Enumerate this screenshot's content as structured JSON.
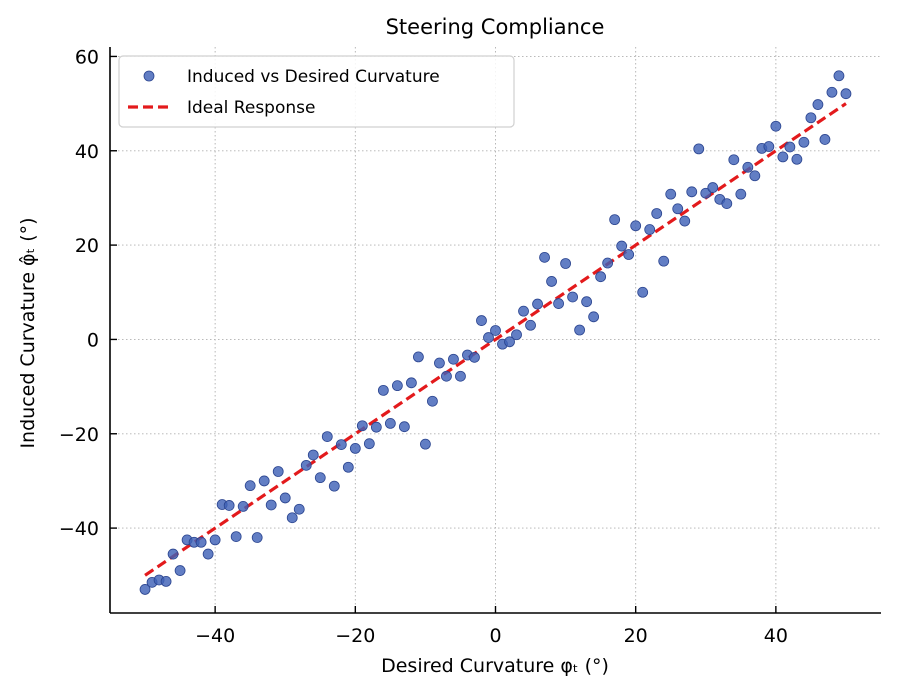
{
  "chart_data": {
    "type": "scatter",
    "title": "Steering Compliance",
    "xlabel": "Desired Curvature φₜ (°)",
    "ylabel": "Induced Curvature φ̂ₜ (°)",
    "xlim": [
      -55,
      55
    ],
    "ylim": [
      -58,
      62
    ],
    "xticks": [
      -40,
      -20,
      0,
      20,
      40
    ],
    "yticks": [
      -40,
      -20,
      0,
      20,
      40,
      60
    ],
    "xtick_labels": [
      "−40",
      "−20",
      "0",
      "20",
      "40"
    ],
    "ytick_labels": [
      "−40",
      "−20",
      "0",
      "20",
      "40",
      "60"
    ],
    "grid": true,
    "legend_position": "top-left",
    "series": [
      {
        "name": "Induced vs Desired Curvature",
        "kind": "scatter",
        "color": "#4062b7",
        "edge_color": "#2b4590",
        "x": [
          -50,
          -49,
          -48,
          -47,
          -46,
          -45,
          -44,
          -43,
          -42,
          -41,
          -40,
          -39,
          -38,
          -37,
          -36,
          -35,
          -34,
          -33,
          -32,
          -31,
          -30,
          -29,
          -28,
          -27,
          -26,
          -25,
          -24,
          -23,
          -22,
          -21,
          -20,
          -19,
          -18,
          -17,
          -16,
          -15,
          -14,
          -13,
          -12,
          -11,
          -10,
          -9,
          -8,
          -7,
          -6,
          -5,
          -4,
          -3,
          -2,
          -1,
          0,
          1,
          2,
          3,
          4,
          5,
          6,
          7,
          8,
          9,
          10,
          11,
          12,
          13,
          14,
          15,
          16,
          17,
          18,
          19,
          20,
          21,
          22,
          23,
          24,
          25,
          26,
          27,
          28,
          29,
          30,
          31,
          32,
          33,
          34,
          35,
          36,
          37,
          38,
          39,
          40,
          41,
          42,
          43,
          44,
          45,
          46,
          47,
          48,
          49,
          50
        ],
        "y": [
          -53,
          -51.5,
          -51,
          -51.3,
          -45.5,
          -49,
          -42.5,
          -43,
          -43,
          -45.5,
          -42.5,
          -35,
          -35.2,
          -41.8,
          -35.4,
          -31,
          -42,
          -30,
          -35.1,
          -28,
          -33.6,
          -37.8,
          -36,
          -26.7,
          -24.5,
          -29.3,
          -20.6,
          -31.1,
          -22.3,
          -27.1,
          -23.1,
          -18.3,
          -22.1,
          -18.6,
          -10.8,
          -17.8,
          -9.8,
          -18.5,
          -9.2,
          -3.7,
          -22.2,
          -13.1,
          -5,
          -7.8,
          -4.2,
          -7.8,
          -3.3,
          -3.8,
          4,
          0.4,
          1.9,
          -1,
          -0.5,
          1,
          6,
          3,
          7.5,
          17.4,
          12.3,
          7.6,
          16.1,
          9,
          2,
          8,
          4.8,
          13.3,
          16.2,
          25.4,
          19.8,
          18,
          24.1,
          10,
          23.3,
          26.7,
          16.6,
          30.8,
          27.7,
          25.1,
          31.3,
          40.4,
          31,
          32.2,
          29.7,
          28.8,
          38.1,
          30.8,
          36.5,
          34.7,
          40.5,
          40.9,
          45.2,
          38.7,
          40.8,
          38.2,
          41.8,
          47,
          49.8,
          42.4,
          52.4,
          55.9,
          52.1
        ]
      },
      {
        "name": "Ideal Response",
        "kind": "line",
        "color": "#e31a1c",
        "x": [
          -50,
          50
        ],
        "y": [
          -50,
          50
        ]
      }
    ]
  }
}
